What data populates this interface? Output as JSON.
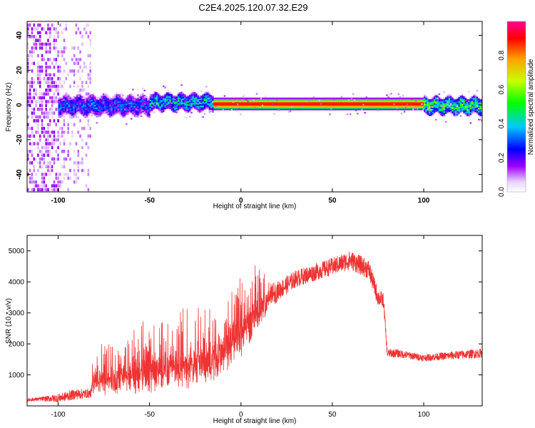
{
  "title": "C2E4.2025.120.07.32.E29",
  "chart_data": [
    {
      "type": "heatmap",
      "xlabel": "Height of straight line (km)",
      "ylabel": "Frequency (Hz)",
      "xlim": [
        -117,
        132
      ],
      "ylim": [
        -50,
        48
      ],
      "xticks": [
        -100,
        -50,
        0,
        50,
        100
      ],
      "yticks": [
        -40,
        -20,
        0,
        20,
        40
      ],
      "colorbar": {
        "label": "Normalized spectral amplitude",
        "range": [
          0,
          1
        ],
        "ticks": [
          "0.0",
          "0.2",
          "0.4",
          "0.6",
          "0.8"
        ],
        "colormap": [
          "#ffffff",
          "#e0c8ff",
          "#a000ff",
          "#0000ff",
          "#00c8ff",
          "#00ff00",
          "#c8ff00",
          "#ffa000",
          "#ff0000",
          "#ff00a0"
        ]
      },
      "ridge": {
        "segments": [
          {
            "x_start": -100,
            "x_end": -50,
            "freq_center": 0,
            "band_half_width": 4,
            "amplitude": 0.25
          },
          {
            "x_start": -50,
            "x_end": -15,
            "freq_center": 2,
            "band_half_width": 3,
            "amplitude": 0.35
          },
          {
            "x_start": -15,
            "x_end": 100,
            "freq_center": 1,
            "band_half_width": 1,
            "amplitude": 0.9
          },
          {
            "x_start": 100,
            "x_end": 132,
            "freq_center": 0,
            "band_half_width": 3,
            "amplitude": 0.45
          }
        ],
        "noise_region_x": [
          -117,
          -82
        ]
      }
    },
    {
      "type": "line",
      "xlabel": "Height of straight line (km)",
      "ylabel": "SNR (10 * v/v)",
      "xlim": [
        -117,
        132
      ],
      "ylim": [
        0,
        5500
      ],
      "xticks": [
        -100,
        -50,
        0,
        50,
        100
      ],
      "yticks": [
        1000,
        2000,
        3000,
        4000,
        5000
      ],
      "color": "#ee3333",
      "series": [
        {
          "x": [
            -117,
            -110,
            -100,
            -90,
            -82,
            -81,
            -75,
            -70,
            -60,
            -50,
            -40,
            -30,
            -20,
            -15,
            -10,
            -5,
            0,
            5,
            10,
            15,
            20,
            30,
            40,
            50,
            60,
            70,
            75,
            78,
            80,
            85,
            90,
            100,
            110,
            120,
            132
          ],
          "base": [
            200,
            220,
            250,
            380,
            400,
            750,
            800,
            850,
            950,
            1000,
            1150,
            1250,
            1400,
            1500,
            1800,
            2000,
            2300,
            2600,
            3000,
            3400,
            3700,
            4100,
            4300,
            4500,
            4700,
            4400,
            3500,
            3400,
            1700,
            1700,
            1650,
            1550,
            1600,
            1650,
            1700
          ],
          "spread": [
            80,
            90,
            200,
            250,
            200,
            650,
            800,
            850,
            1000,
            1100,
            1200,
            1250,
            1400,
            1500,
            1500,
            1500,
            1400,
            1200,
            1000,
            600,
            450,
            400,
            400,
            400,
            450,
            450,
            400,
            350,
            200,
            200,
            180,
            160,
            180,
            200,
            220
          ]
        }
      ]
    }
  ]
}
